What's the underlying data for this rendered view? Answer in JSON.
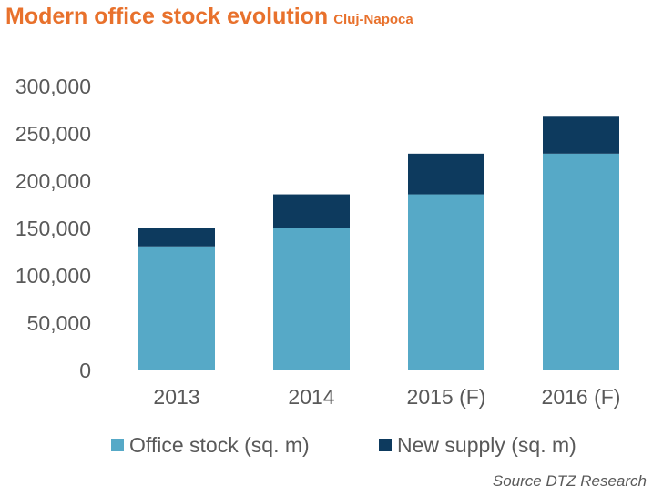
{
  "title": "Modern office stock evolution",
  "subtitle": "Cluj-Napoca",
  "source": "Source DTZ Research",
  "colors": {
    "title": "#e8712c",
    "office_stock": "#56a9c7",
    "new_supply": "#0d3a5e",
    "axis_text": "#595959"
  },
  "chart_data": {
    "type": "bar",
    "stacked": true,
    "categories": [
      "2013",
      "2014",
      "2015 (F)",
      "2016 (F)"
    ],
    "series": [
      {
        "name": "Office stock (sq. m)",
        "values": [
          131000,
          150000,
          186000,
          229000
        ]
      },
      {
        "name": "New supply (sq. m)",
        "values": [
          19000,
          36000,
          43000,
          39000
        ]
      }
    ],
    "ylim": [
      0,
      300000
    ],
    "yticks": [
      "300,000",
      "250,000",
      "200,000",
      "150,000",
      "100,000",
      "50,000",
      "0"
    ],
    "ytick_values": [
      300000,
      250000,
      200000,
      150000,
      100000,
      50000,
      0
    ],
    "grid": false,
    "legend_position": "bottom"
  }
}
